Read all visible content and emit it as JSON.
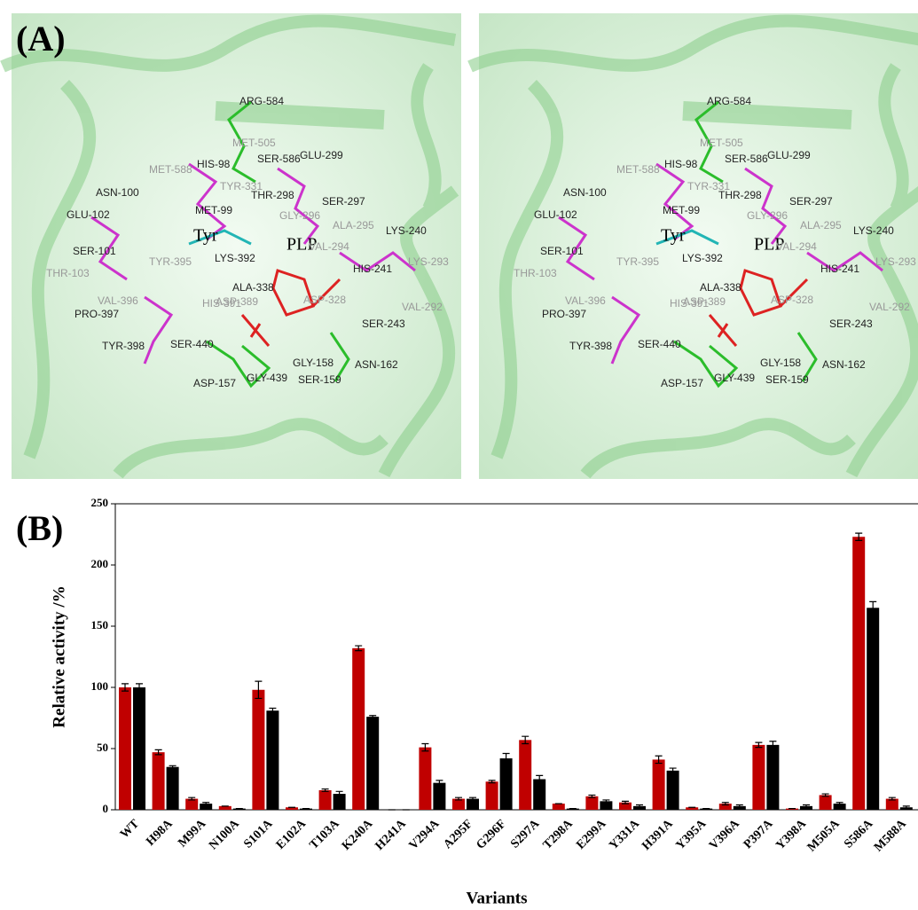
{
  "panel_labels": [
    "(A)",
    "(B)"
  ],
  "structure": {
    "labels": [
      "ARG-584",
      "MET-505",
      "SER-586",
      "GLU-299",
      "HIS-98",
      "MET-588",
      "TYR-331",
      "THR-298",
      "SER-297",
      "ASN-100",
      "MET-99",
      "GLY-296",
      "ALA-295",
      "GLU-102",
      "Tyr",
      "PLP",
      "LYS-240",
      "VAL-294",
      "LYS-392",
      "SER-101",
      "TYR-395",
      "HIS-241",
      "LYS-293",
      "THR-103",
      "ALA-338",
      "VAL-396",
      "HIS-391",
      "ASP-389",
      "ASP-328",
      "VAL-292",
      "PRO-397",
      "SER-243",
      "GLY-158",
      "TYR-398",
      "SER-440",
      "ASN-162",
      "ASP-157",
      "GLY-439",
      "SER-159"
    ]
  },
  "chart_data": {
    "type": "bar",
    "categories": [
      "WT",
      "H98A",
      "M99A",
      "N100A",
      "S101A",
      "E102A",
      "T103A",
      "K240A",
      "H241A",
      "V294A",
      "A295F",
      "G296F",
      "S297A",
      "T298A",
      "E299A",
      "Y331A",
      "H391A",
      "Y395A",
      "V396A",
      "P397A",
      "Y398A",
      "M505A",
      "S586A",
      "M588A"
    ],
    "series": [
      {
        "color": "#c00000",
        "values": [
          100,
          47,
          9,
          3,
          98,
          2,
          16,
          132,
          0,
          51,
          9,
          23,
          57,
          5,
          11,
          6,
          41,
          2,
          5,
          53,
          1,
          12,
          223,
          9
        ],
        "errors": [
          3,
          2,
          1,
          0,
          7,
          0,
          1,
          2,
          0,
          3,
          1,
          1,
          3,
          0,
          1,
          1,
          3,
          0,
          1,
          2,
          0,
          1,
          3,
          1
        ]
      },
      {
        "color": "#000000",
        "values": [
          100,
          35,
          5,
          1,
          81,
          1,
          13,
          76,
          0,
          22,
          9,
          42,
          25,
          1,
          7,
          3,
          32,
          1,
          3,
          53,
          3,
          5,
          165,
          2
        ],
        "errors": [
          3,
          1,
          1,
          0,
          2,
          0,
          2,
          1,
          0,
          2,
          1,
          4,
          3,
          0,
          1,
          1,
          2,
          0,
          1,
          3,
          1,
          1,
          5,
          1
        ]
      }
    ],
    "ylabel": "Relative activity /%",
    "xlabel": "Variants",
    "ylim": [
      0,
      250
    ],
    "yticks": [
      0,
      50,
      100,
      150,
      200,
      250
    ]
  }
}
